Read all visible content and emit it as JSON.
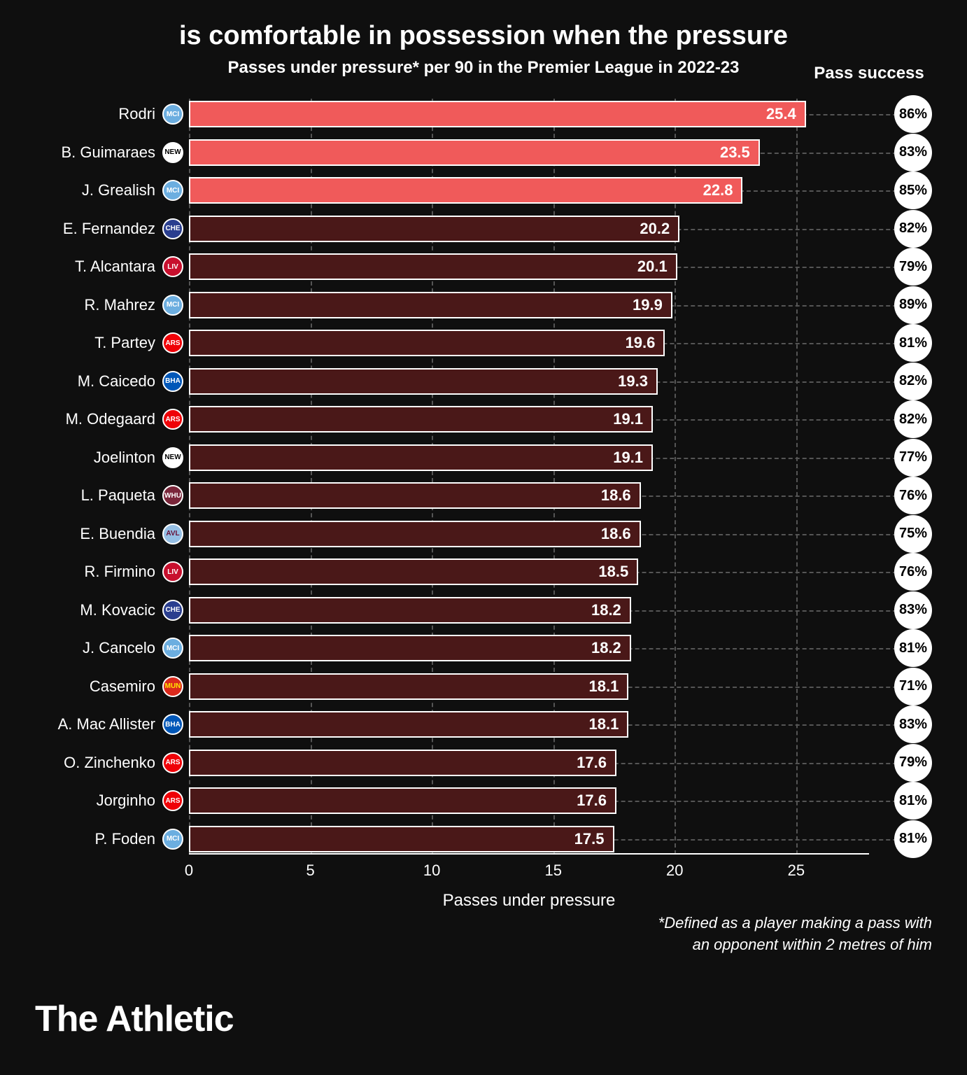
{
  "title": "is comfortable in possession when the pressure",
  "subtitle": "Passes under pressure* per 90 in the Premier League in 2022-23",
  "pass_success_header": "Pass success",
  "x_axis_label": "Passes under pressure",
  "footnote_line1": "*Defined as a player making a pass with",
  "footnote_line2": "an opponent within 2 metres of him",
  "brand": "The Athletic",
  "chart": {
    "type": "bar",
    "xlim_max": 28,
    "xticks": [
      0,
      5,
      10,
      15,
      20,
      25
    ],
    "bar_border_color": "#ffffff",
    "highlight_color": "#f05a5a",
    "standard_color": "#4a1818",
    "background_color": "#0f0f0f",
    "grid_color": "#555555",
    "text_color": "#ffffff",
    "badge_bg": "#ffffff",
    "badge_text": "#000000"
  },
  "clubs": {
    "mci": {
      "abbr": "MCI",
      "bg": "#6caee0",
      "fg": "#ffffff"
    },
    "new": {
      "abbr": "NEW",
      "bg": "#ffffff",
      "fg": "#000000"
    },
    "che": {
      "abbr": "CHE",
      "bg": "#2a3e8f",
      "fg": "#ffffff"
    },
    "liv": {
      "abbr": "LIV",
      "bg": "#c8102e",
      "fg": "#ffffff"
    },
    "ars": {
      "abbr": "ARS",
      "bg": "#ef0107",
      "fg": "#ffffff"
    },
    "bha": {
      "abbr": "BHA",
      "bg": "#0057b8",
      "fg": "#ffffff"
    },
    "whu": {
      "abbr": "WHU",
      "bg": "#7a263a",
      "fg": "#ffffff"
    },
    "avl": {
      "abbr": "AVL",
      "bg": "#95bfe5",
      "fg": "#670e36"
    },
    "mun": {
      "abbr": "MUN",
      "bg": "#da291c",
      "fg": "#ffe500"
    }
  },
  "players": [
    {
      "name": "Rodri",
      "club": "mci",
      "value": 25.4,
      "success": "86%",
      "highlight": true
    },
    {
      "name": "B. Guimaraes",
      "club": "new",
      "value": 23.5,
      "success": "83%",
      "highlight": true
    },
    {
      "name": "J. Grealish",
      "club": "mci",
      "value": 22.8,
      "success": "85%",
      "highlight": true
    },
    {
      "name": "E. Fernandez",
      "club": "che",
      "value": 20.2,
      "success": "82%",
      "highlight": false
    },
    {
      "name": "T. Alcantara",
      "club": "liv",
      "value": 20.1,
      "success": "79%",
      "highlight": false
    },
    {
      "name": "R. Mahrez",
      "club": "mci",
      "value": 19.9,
      "success": "89%",
      "highlight": false
    },
    {
      "name": "T. Partey",
      "club": "ars",
      "value": 19.6,
      "success": "81%",
      "highlight": false
    },
    {
      "name": "M. Caicedo",
      "club": "bha",
      "value": 19.3,
      "success": "82%",
      "highlight": false
    },
    {
      "name": "M. Odegaard",
      "club": "ars",
      "value": 19.1,
      "success": "82%",
      "highlight": false
    },
    {
      "name": "Joelinton",
      "club": "new",
      "value": 19.1,
      "success": "77%",
      "highlight": false
    },
    {
      "name": "L. Paqueta",
      "club": "whu",
      "value": 18.6,
      "success": "76%",
      "highlight": false
    },
    {
      "name": "E. Buendia",
      "club": "avl",
      "value": 18.6,
      "success": "75%",
      "highlight": false
    },
    {
      "name": "R. Firmino",
      "club": "liv",
      "value": 18.5,
      "success": "76%",
      "highlight": false
    },
    {
      "name": "M. Kovacic",
      "club": "che",
      "value": 18.2,
      "success": "83%",
      "highlight": false
    },
    {
      "name": "J. Cancelo",
      "club": "mci",
      "value": 18.2,
      "success": "81%",
      "highlight": false
    },
    {
      "name": "Casemiro",
      "club": "mun",
      "value": 18.1,
      "success": "71%",
      "highlight": false
    },
    {
      "name": "A. Mac Allister",
      "club": "bha",
      "value": 18.1,
      "success": "83%",
      "highlight": false
    },
    {
      "name": "O. Zinchenko",
      "club": "ars",
      "value": 17.6,
      "success": "79%",
      "highlight": false
    },
    {
      "name": "Jorginho",
      "club": "ars",
      "value": 17.6,
      "success": "81%",
      "highlight": false
    },
    {
      "name": "P. Foden",
      "club": "mci",
      "value": 17.5,
      "success": "81%",
      "highlight": false
    }
  ]
}
